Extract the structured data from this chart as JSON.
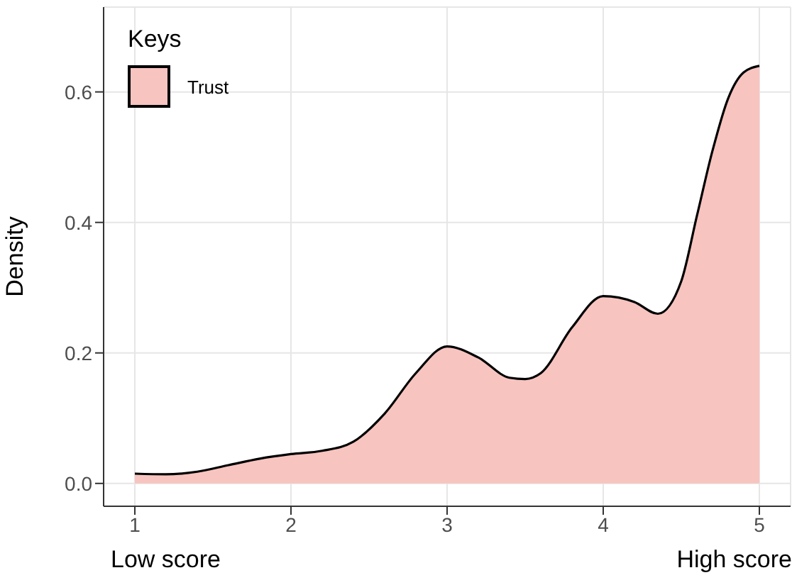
{
  "chart_data": {
    "type": "area",
    "ylabel": "Density",
    "legend_title": "Keys",
    "legend": "top left",
    "grid": true,
    "annotations": [
      "Low score",
      "High score"
    ],
    "x": [
      1.0,
      1.2,
      1.4,
      1.6,
      1.8,
      2.0,
      2.2,
      2.4,
      2.6,
      2.8,
      3.0,
      3.2,
      3.4,
      3.5,
      3.6,
      3.8,
      4.0,
      4.2,
      4.35,
      4.5,
      4.6,
      4.7,
      4.8,
      4.9,
      5.0
    ],
    "series": [
      {
        "name": "Trust",
        "color": "#f8c4c0",
        "values": [
          0.015,
          0.014,
          0.018,
          0.028,
          0.038,
          0.045,
          0.05,
          0.064,
          0.107,
          0.169,
          0.21,
          0.193,
          0.162,
          0.16,
          0.169,
          0.239,
          0.287,
          0.278,
          0.26,
          0.31,
          0.41,
          0.51,
          0.59,
          0.63,
          0.64
        ]
      }
    ],
    "xlim": [
      0.8,
      5.2
    ],
    "xticks": [
      1,
      2,
      3,
      4,
      5
    ],
    "ylim": [
      -0.035,
      0.73
    ],
    "yticks": [
      {
        "value": 0,
        "label": "0.0"
      },
      0.2,
      0.4,
      0.6
    ]
  }
}
